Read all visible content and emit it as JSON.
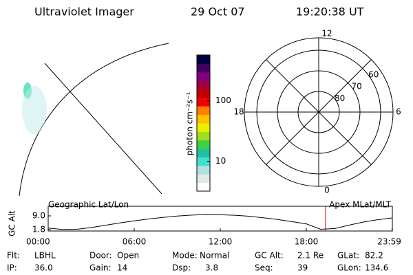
{
  "header": {
    "title": "Ultraviolet Imager",
    "date": "29 Oct 07",
    "time": "19:20:38 UT"
  },
  "colorbar": {
    "label": "photon cm⁻²s⁻¹",
    "log": true,
    "lim": [
      3.2,
      575
    ],
    "ticks": [
      10,
      100
    ],
    "colors": [
      "#ffffff",
      "#e0e8e8",
      "#b0e0e0",
      "#40e0d0",
      "#20c0a0",
      "#40d040",
      "#a0e020",
      "#e8f000",
      "#ffc000",
      "#ff8000",
      "#f00000",
      "#c00000",
      "#a00040",
      "#800080",
      "#400060",
      "#000040"
    ]
  },
  "polar": {
    "lat_lim": [
      90,
      54
    ],
    "lat_rings": [
      80,
      70,
      60
    ],
    "hour_labels": [
      12,
      6,
      0,
      18
    ]
  },
  "altitude": {
    "left_label": "Geographic Lat/Lon",
    "right_label": "Apex MLat/MLT",
    "ylabel": "GC Alt",
    "x": [
      0,
      1,
      2,
      3,
      4,
      5,
      6,
      7,
      8,
      9,
      10,
      11,
      12,
      13,
      14,
      15,
      16,
      17,
      18,
      19,
      20,
      21,
      22,
      23,
      24
    ],
    "values": [
      2.6,
      1.9,
      2.0,
      2.9,
      4.1,
      5.3,
      6.4,
      7.4,
      8.2,
      8.9,
      9.4,
      9.7,
      9.6,
      9.3,
      8.8,
      8.0,
      7.1,
      6.0,
      4.8,
      2.0,
      2.4,
      4.2,
      5.8,
      7.0,
      7.9
    ],
    "xlim": [
      0,
      24
    ],
    "ylim": [
      1.08,
      14.04
    ],
    "xticks": [
      {
        "value": 0,
        "label": "00:00"
      },
      {
        "value": 6,
        "label": "06:00"
      },
      {
        "value": 12,
        "label": "12:00"
      },
      {
        "value": 18,
        "label": "18:00"
      },
      {
        "value": 23.98,
        "label": "23:59"
      }
    ],
    "yticks": [
      {
        "value": 9,
        "label": "9.0"
      },
      1.8
    ],
    "marker": 19.34,
    "marker_color": "#d00000"
  },
  "footer": [
    [
      "Flt:",
      "LBHL"
    ],
    [
      "IP:",
      "36.0"
    ],
    [
      "Door:",
      "Open"
    ],
    [
      "Gain:",
      "14"
    ],
    [
      "Mode:",
      "Normal"
    ],
    [
      "Dsp:",
      "3.8"
    ],
    [
      "GC Alt:",
      "2.1 Re"
    ],
    [
      "Seq:",
      "39"
    ],
    [
      "GLat:",
      "82.2"
    ],
    [
      "GLon:",
      "134.6"
    ]
  ]
}
